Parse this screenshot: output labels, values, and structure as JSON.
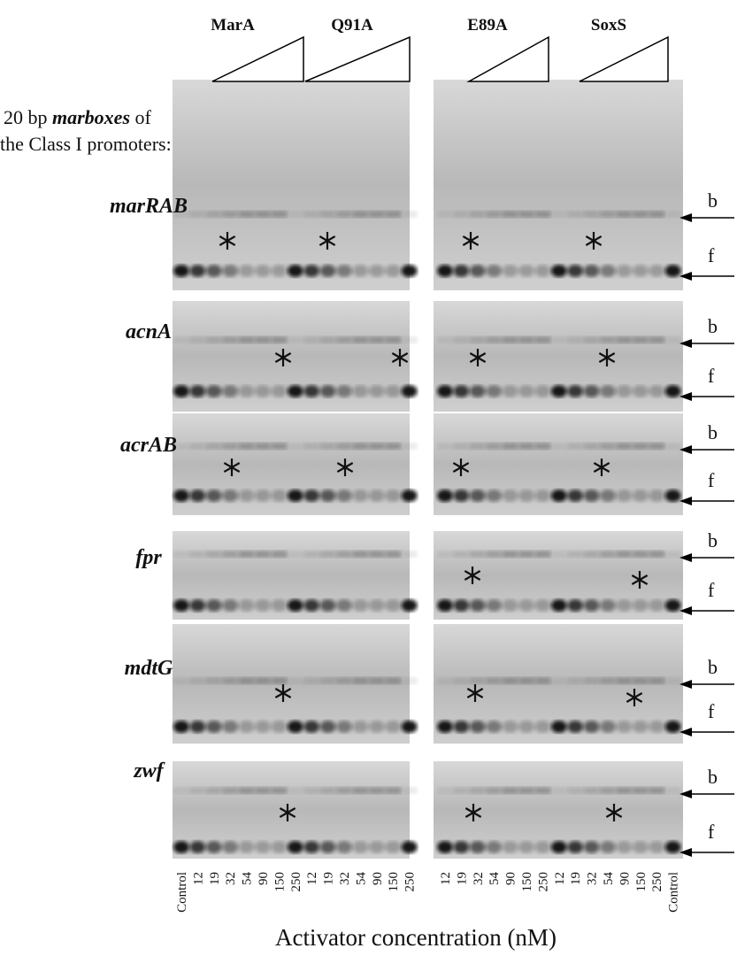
{
  "header": {
    "columns": [
      "MarA",
      "Q91A",
      "E89A",
      "SoxS"
    ]
  },
  "side_title": {
    "line1_start": "20 bp",
    "line1_emphasis": "marboxes",
    "line1_end": "of",
    "line2": "the Class I promoters:"
  },
  "rows": [
    {
      "label": "marRAB",
      "bound": "b",
      "free": "f"
    },
    {
      "label": "acnA",
      "bound": "b",
      "free": "f"
    },
    {
      "label": "acrAB",
      "bound": "b",
      "free": "f"
    },
    {
      "label": "fpr",
      "bound": "b",
      "free": "f"
    },
    {
      "label": "mdtG",
      "bound": "b",
      "free": "f"
    },
    {
      "label": "zwf",
      "bound": "b",
      "free": "f"
    }
  ],
  "lanes_left": [
    "Control",
    "12",
    "19",
    "32",
    "54",
    "90",
    "150",
    "250",
    "12",
    "19",
    "32",
    "54",
    "90",
    "150",
    "250"
  ],
  "lanes_right": [
    "12",
    "19",
    "32",
    "54",
    "90",
    "150",
    "250",
    "12",
    "19",
    "32",
    "54",
    "90",
    "150",
    "250",
    "Control"
  ],
  "x_axis_label": "Activator concentration (nM)"
}
